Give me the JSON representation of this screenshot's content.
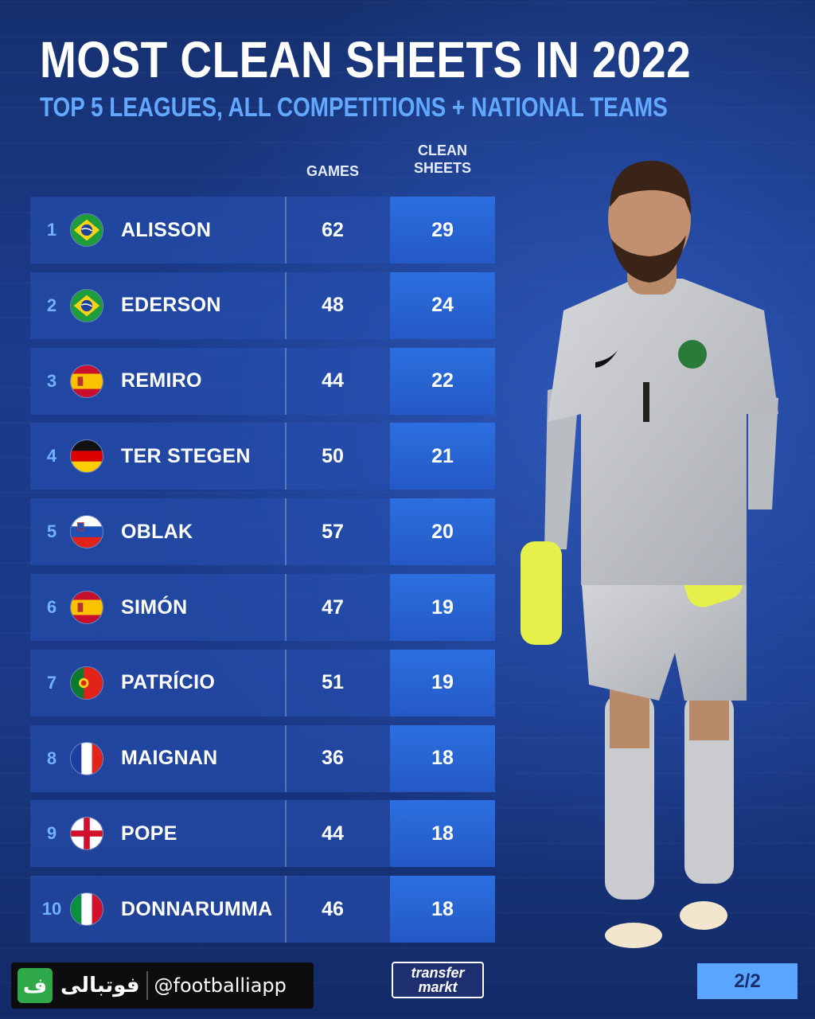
{
  "header": {
    "title": "MOST CLEAN SHEETS IN 2022",
    "subtitle": "TOP 5 LEAGUES, ALL COMPETITIONS + NATIONAL TEAMS"
  },
  "columns": {
    "games": "GAMES",
    "clean_sheets_line1": "CLEAN",
    "clean_sheets_line2": "SHEETS"
  },
  "rows": [
    {
      "rank": "1",
      "flag": "brazil-flag-icon",
      "name": "ALISSON",
      "games": "62",
      "clean_sheets": "29"
    },
    {
      "rank": "2",
      "flag": "brazil-flag-icon",
      "name": "EDERSON",
      "games": "48",
      "clean_sheets": "24"
    },
    {
      "rank": "3",
      "flag": "spain-flag-icon",
      "name": "REMIRO",
      "games": "44",
      "clean_sheets": "22"
    },
    {
      "rank": "4",
      "flag": "germany-flag-icon",
      "name": "TER STEGEN",
      "games": "50",
      "clean_sheets": "21"
    },
    {
      "rank": "5",
      "flag": "slovenia-flag-icon",
      "name": "OBLAK",
      "games": "57",
      "clean_sheets": "20"
    },
    {
      "rank": "6",
      "flag": "spain-flag-icon",
      "name": "SIMÓN",
      "games": "47",
      "clean_sheets": "19"
    },
    {
      "rank": "7",
      "flag": "portugal-flag-icon",
      "name": "PATRÍCIO",
      "games": "51",
      "clean_sheets": "19"
    },
    {
      "rank": "8",
      "flag": "france-flag-icon",
      "name": "MAIGNAN",
      "games": "36",
      "clean_sheets": "18"
    },
    {
      "rank": "9",
      "flag": "england-flag-icon",
      "name": "POPE",
      "games": "44",
      "clean_sheets": "18"
    },
    {
      "rank": "10",
      "flag": "italy-flag-icon",
      "name": "DONNARUMMA",
      "games": "46",
      "clean_sheets": "18"
    }
  ],
  "footer": {
    "app_logo": "ف",
    "app_name": "فوتبالی",
    "handle": "@footballiapp",
    "tm_line1": "transfer",
    "tm_line2": "markt",
    "page": "2/2"
  },
  "colors": {
    "accent": "#63a8ff",
    "sheets_column": "#2c6fe0",
    "row_background": "#264eaf",
    "app_green": "#2fa84a"
  },
  "icons": {
    "player_photo": "goalkeeper-photo-icon"
  }
}
